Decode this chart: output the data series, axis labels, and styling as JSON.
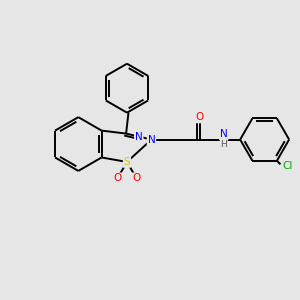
{
  "bg_color": "#e6e6e6",
  "bond_color": "#000000",
  "atom_colors": {
    "N": "#0000ff",
    "O": "#ff0000",
    "S": "#cccc00",
    "Cl": "#00aa00",
    "C": "#000000",
    "H": "#555555"
  },
  "figsize": [
    3.0,
    3.0
  ],
  "dpi": 100,
  "lw": 1.4,
  "fontsize": 7.5
}
